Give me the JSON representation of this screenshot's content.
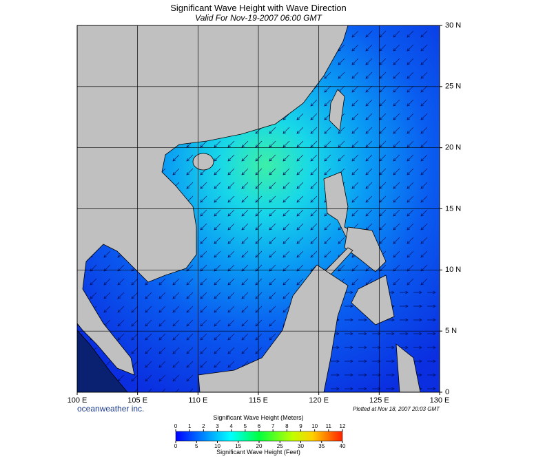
{
  "header": {
    "title": "Significant Wave Height with Wave Direction",
    "subtitle": "Valid For Nov-19-2007 06:00 GMT"
  },
  "map": {
    "lonlim": [
      100,
      130
    ],
    "latlim": [
      0,
      30
    ],
    "lon_ticks": [
      {
        "value": 100,
        "label": "100 E"
      },
      {
        "value": 105,
        "label": "105 E"
      },
      {
        "value": 110,
        "label": "110 E"
      },
      {
        "value": 115,
        "label": "115 E"
      },
      {
        "value": 120,
        "label": "120 E"
      },
      {
        "value": 125,
        "label": "125 E"
      },
      {
        "value": 130,
        "label": "130 E"
      }
    ],
    "lat_ticks": [
      0,
      {
        "value": 5,
        "label": "5 N"
      },
      {
        "value": 10,
        "label": "10 N"
      },
      {
        "value": 15,
        "label": "15 N"
      },
      {
        "value": 20,
        "label": "20 N"
      },
      {
        "value": 25,
        "label": "25 N"
      },
      {
        "value": 30,
        "label": "30 N"
      }
    ]
  },
  "credits": {
    "company": "oceanweather inc.",
    "plotted": "Plotted at Nov 18, 2007 20:03 GMT"
  },
  "colorbar": {
    "meters_label": "Significant Wave Height (Meters)",
    "meters_lim": [
      0,
      12
    ],
    "meters_ticks": [
      0,
      1,
      2,
      3,
      4,
      5,
      6,
      7,
      8,
      9,
      10,
      11,
      12
    ],
    "feet_label": "Significant Wave Height (Feet)",
    "feet_lim": [
      0,
      40
    ],
    "feet_ticks": [
      0,
      5,
      10,
      15,
      20,
      25,
      30,
      35,
      40
    ]
  }
}
